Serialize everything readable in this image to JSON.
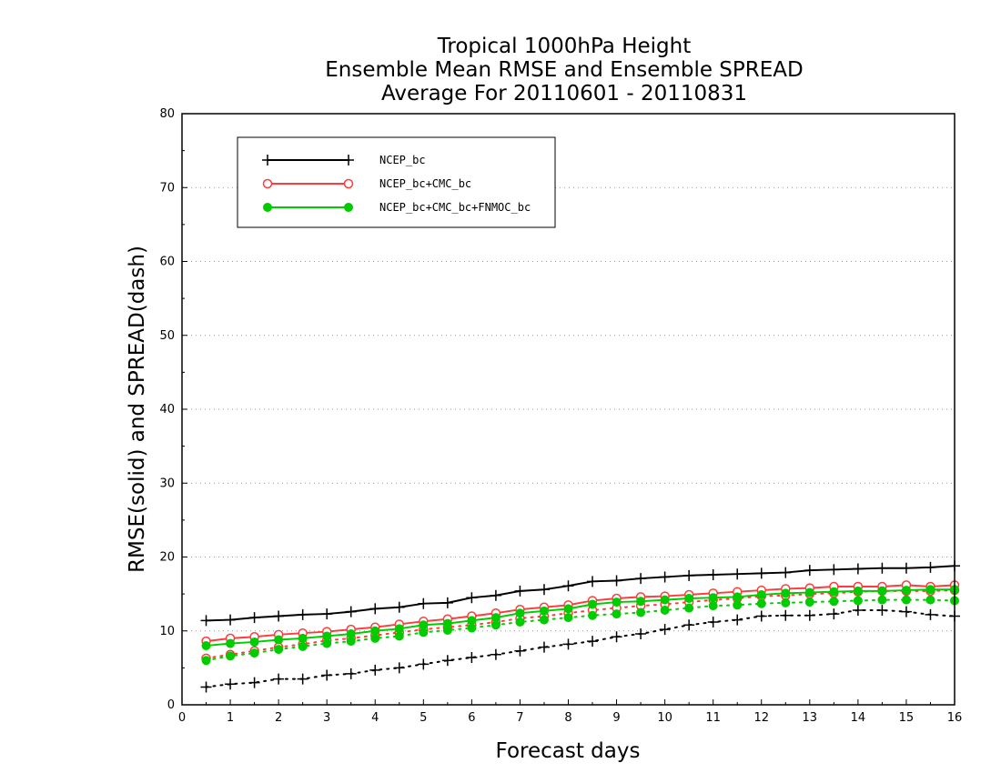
{
  "chart_data": {
    "type": "line",
    "title": [
      "Tropical 1000hPa Height",
      "Ensemble Mean RMSE and Ensemble SPREAD",
      "Average For 20110601 - 20110831"
    ],
    "xlabel": "Forecast days",
    "ylabel": "RMSE(solid) and SPREAD(dash)",
    "xlim": [
      0,
      16
    ],
    "ylim": [
      0,
      80
    ],
    "xticks": [
      0,
      1,
      2,
      3,
      4,
      5,
      6,
      7,
      8,
      9,
      10,
      11,
      12,
      13,
      14,
      15,
      16
    ],
    "yticks": [
      0,
      10,
      20,
      30,
      40,
      50,
      60,
      70,
      80
    ],
    "grid": "horizontal dotted",
    "legend_position": "top-left",
    "x": [
      0.5,
      1,
      1.5,
      2,
      2.5,
      3,
      3.5,
      4,
      4.5,
      5,
      5.5,
      6,
      6.5,
      7,
      7.5,
      8,
      8.5,
      9,
      9.5,
      10,
      10.5,
      11,
      11.5,
      12,
      12.5,
      13,
      13.5,
      14,
      14.5,
      15,
      15.5,
      16
    ],
    "series": [
      {
        "name": "NCEP_bc",
        "color": "#000000",
        "marker": "plus",
        "rmse": [
          11.4,
          11.5,
          11.8,
          12.0,
          12.2,
          12.3,
          12.6,
          13.0,
          13.2,
          13.7,
          13.8,
          14.5,
          14.8,
          15.4,
          15.6,
          16.1,
          16.7,
          16.8,
          17.1,
          17.3,
          17.5,
          17.6,
          17.7,
          17.8,
          17.9,
          18.2,
          18.3,
          18.4,
          18.5,
          18.5,
          18.6,
          18.8
        ],
        "spread": [
          2.4,
          2.8,
          3.0,
          3.5,
          3.5,
          4.0,
          4.2,
          4.7,
          5.0,
          5.5,
          6.0,
          6.4,
          6.8,
          7.3,
          7.8,
          8.2,
          8.6,
          9.2,
          9.6,
          10.2,
          10.8,
          11.2,
          11.5,
          12.0,
          12.1,
          12.1,
          12.3,
          12.8,
          12.8,
          12.6,
          12.2,
          12.0
        ]
      },
      {
        "name": "NCEP_bc+CMC_bc",
        "color": "#ff3b3b",
        "marker": "open-circle",
        "rmse": [
          8.6,
          9.0,
          9.2,
          9.5,
          9.7,
          9.9,
          10.2,
          10.5,
          10.9,
          11.3,
          11.6,
          12.0,
          12.4,
          12.9,
          13.2,
          13.5,
          14.1,
          14.4,
          14.6,
          14.7,
          14.9,
          15.1,
          15.3,
          15.5,
          15.7,
          15.8,
          16.0,
          16.0,
          16.0,
          16.2,
          16.0,
          16.2
        ],
        "spread": [
          6.3,
          6.8,
          7.3,
          7.8,
          8.2,
          8.7,
          9.0,
          9.4,
          9.8,
          10.2,
          10.5,
          10.8,
          11.2,
          11.7,
          12.0,
          12.4,
          12.8,
          13.1,
          13.4,
          13.6,
          13.9,
          14.2,
          14.4,
          14.7,
          14.8,
          15.0,
          15.1,
          15.3,
          15.4,
          15.4,
          15.4,
          15.5
        ]
      },
      {
        "name": "NCEP_bc+CMC_bc+FNMOC_bc",
        "color": "#00cc00",
        "marker": "filled-circle",
        "rmse": [
          8.0,
          8.3,
          8.5,
          8.8,
          9.0,
          9.3,
          9.6,
          10.0,
          10.3,
          10.8,
          11.0,
          11.4,
          11.8,
          12.4,
          12.7,
          13.0,
          13.6,
          13.9,
          14.0,
          14.2,
          14.4,
          14.5,
          14.6,
          14.9,
          15.1,
          15.2,
          15.3,
          15.4,
          15.4,
          15.5,
          15.6,
          15.6
        ],
        "spread": [
          6.0,
          6.6,
          7.0,
          7.5,
          7.9,
          8.3,
          8.6,
          9.0,
          9.3,
          9.8,
          10.1,
          10.4,
          10.8,
          11.2,
          11.5,
          11.8,
          12.1,
          12.3,
          12.5,
          12.8,
          13.1,
          13.4,
          13.5,
          13.7,
          13.8,
          13.9,
          14.0,
          14.1,
          14.2,
          14.2,
          14.2,
          14.1
        ]
      }
    ]
  }
}
